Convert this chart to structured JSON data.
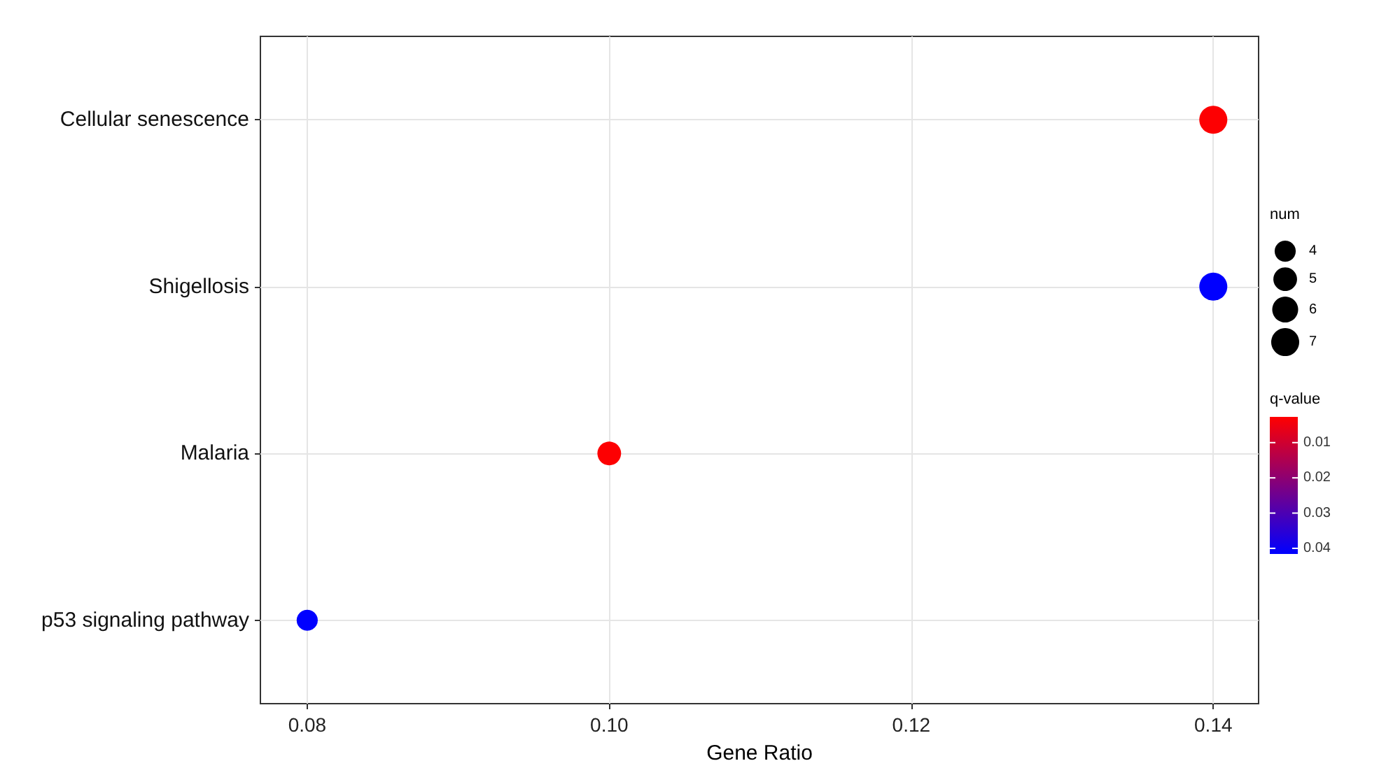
{
  "chart_data": {
    "type": "bubble",
    "orientation": "horizontal",
    "categories": [
      "Cellular senescence",
      "Shigellosis",
      "Malaria",
      "p53 signaling pathway"
    ],
    "values": [
      0.14,
      0.14,
      0.1,
      0.08
    ],
    "sizes": [
      7,
      7,
      5,
      4
    ],
    "cvalues": [
      0.003,
      0.042,
      0.003,
      0.042
    ],
    "size_legend": [
      4,
      5,
      6,
      7
    ],
    "legend_title": "num",
    "clabel": "q-value",
    "clim": [
      0.0027,
      0.0416
    ],
    "cticks": [
      0.01,
      0.02,
      0.03,
      0.04
    ],
    "xlabel": "Gene Ratio",
    "xlim": [
      0.0769,
      0.143
    ],
    "xticks": [
      0.08,
      {
        "value": 0.1,
        "label": "0.10"
      },
      0.12,
      0.14
    ],
    "grid": true
  }
}
